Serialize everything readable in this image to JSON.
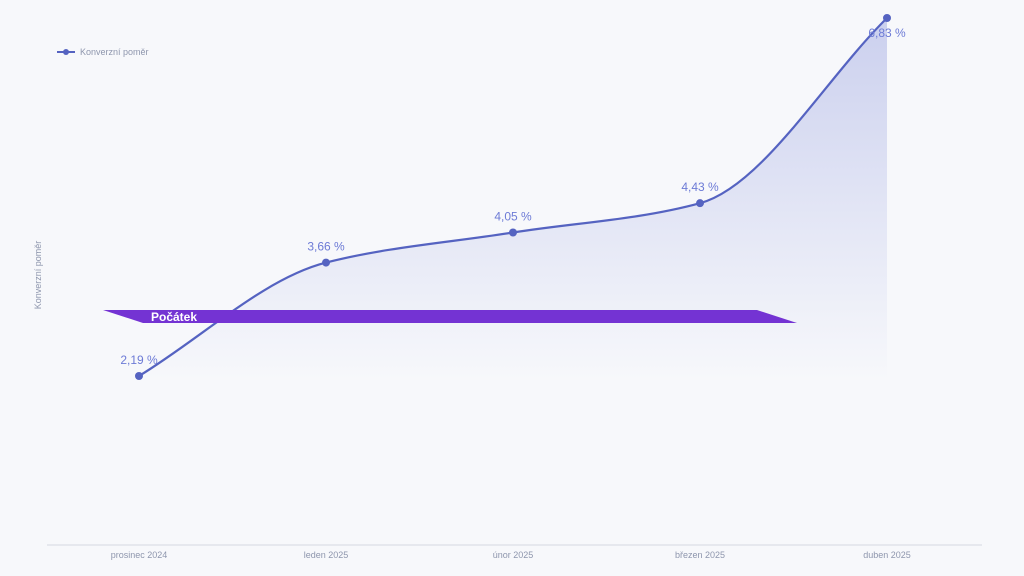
{
  "chart_data": {
    "type": "area",
    "categories": [
      "prosinec 2024",
      "leden 2025",
      "únor 2025",
      "březen 2025",
      "duben 2025"
    ],
    "series": [
      {
        "name": "Konverzní poměr",
        "values": [
          2.19,
          3.66,
          4.05,
          4.43,
          6.83
        ],
        "labels": [
          "2,19 %",
          "3,66 %",
          "4,05 %",
          "4,43 %",
          "6,83 %"
        ],
        "color": "#5563c1"
      }
    ],
    "ylabel": "Konverzní poměr",
    "xlabel": "",
    "title": "",
    "ylim": [
      0,
      7
    ],
    "grid": false,
    "legend": {
      "position": "top-left",
      "label": "Konverzní poměr"
    },
    "annotations": [
      {
        "type": "band",
        "label": "Počátek",
        "value": 2.9,
        "color": "#7433d3"
      }
    ]
  }
}
